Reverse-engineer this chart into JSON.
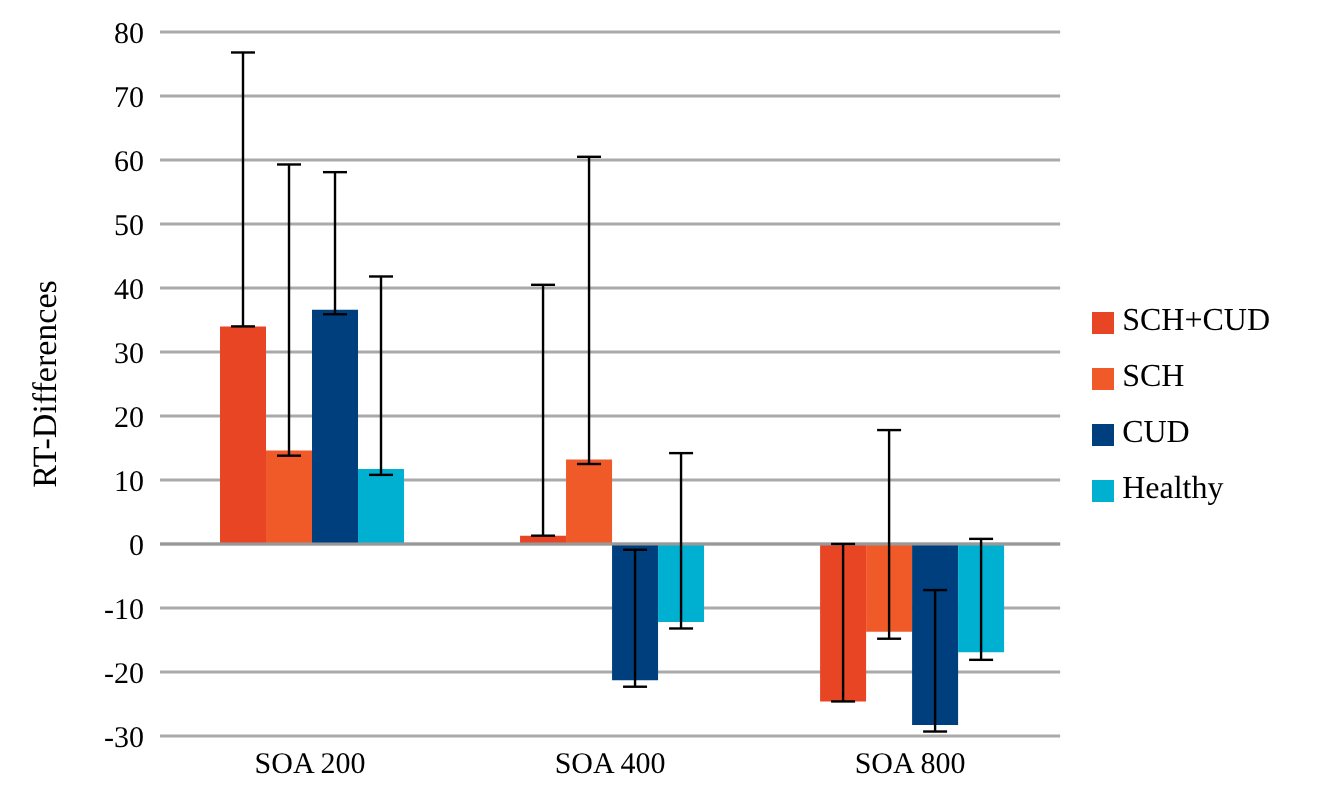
{
  "chart_data": {
    "type": "bar",
    "ylabel": "RT-Differences",
    "categories": [
      "SOA 200",
      "SOA 400",
      "SOA 800"
    ],
    "series": [
      {
        "name": "SCH+CUD",
        "color": "#e84525",
        "values": [
          34.0,
          1.3,
          -24.6
        ],
        "errors": [
          [
            34.0,
            76.8
          ],
          [
            1.3,
            40.5
          ],
          [
            -24.6,
            0
          ]
        ]
      },
      {
        "name": "SCH",
        "color": "#f05a28",
        "values": [
          14.6,
          13.2,
          -13.7
        ],
        "errors": [
          [
            13.8,
            59.3
          ],
          [
            12.5,
            60.5
          ],
          [
            -14.8,
            17.8
          ]
        ]
      },
      {
        "name": "CUD",
        "color": "#003f7d",
        "values": [
          36.6,
          -21.3,
          -28.3
        ],
        "errors": [
          [
            35.9,
            58.1
          ],
          [
            -22.3,
            -0.9
          ],
          [
            -29.3,
            -7.2
          ]
        ]
      },
      {
        "name": "Healthy",
        "color": "#00b0d0",
        "values": [
          11.7,
          -12.2,
          -16.9
        ],
        "errors": [
          [
            10.8,
            41.8
          ],
          [
            -13.2,
            14.2
          ],
          [
            -18.1,
            0.8
          ]
        ]
      }
    ],
    "ylim": [
      -30,
      80
    ],
    "yticks": [
      -30,
      -20,
      -10,
      0,
      10,
      20,
      30,
      40,
      50,
      60,
      70,
      80
    ],
    "grid": "y",
    "legend": "right"
  }
}
